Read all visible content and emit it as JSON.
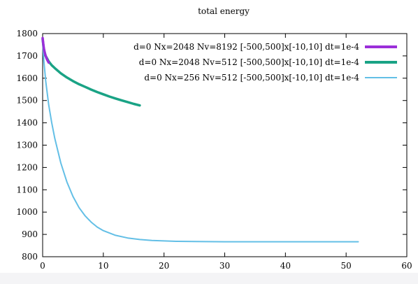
{
  "chart_data": {
    "type": "line",
    "title": "total energy",
    "xlabel": "",
    "ylabel": "",
    "xlim": [
      0,
      60
    ],
    "ylim": [
      800,
      1800
    ],
    "x_ticks": [
      0,
      10,
      20,
      30,
      40,
      50,
      60
    ],
    "y_ticks": [
      800,
      900,
      1000,
      1100,
      1200,
      1300,
      1400,
      1500,
      1600,
      1700,
      1800
    ],
    "grid": false,
    "legend_position": "top-right",
    "series": [
      {
        "name": "d=0 Nx=2048 Nv=8192 [-500,500]x[-10,10] dt=1e-4",
        "color": "#9b2fd9",
        "x": [
          0,
          0.1,
          0.2,
          0.3,
          0.4,
          0.6,
          0.8,
          1.0
        ],
        "y": [
          1780,
          1755,
          1735,
          1720,
          1708,
          1692,
          1680,
          1670
        ]
      },
      {
        "name": "d=0 Nx=2048 Nv=512 [-500,500]x[-10,10] dt=1e-4",
        "color": "#1aa385",
        "x": [
          0,
          0.2,
          0.5,
          1,
          1.5,
          2,
          3,
          4,
          5,
          6,
          7,
          8,
          9,
          10,
          11,
          12,
          13,
          14,
          15,
          16
        ],
        "y": [
          1775,
          1730,
          1700,
          1675,
          1658,
          1645,
          1622,
          1603,
          1587,
          1573,
          1561,
          1549,
          1538,
          1528,
          1518,
          1509,
          1501,
          1493,
          1485,
          1478
        ]
      },
      {
        "name": "d=0 Nx=256 Nv=512 [-500,500]x[-10,10] dt=1e-4",
        "color": "#63bfe6",
        "x": [
          0,
          0.2,
          0.5,
          1,
          1.5,
          2,
          3,
          4,
          5,
          6,
          7,
          8,
          9,
          10,
          12,
          14,
          16,
          18,
          20,
          22,
          25,
          30,
          35,
          40,
          45,
          52
        ],
        "y": [
          1760,
          1680,
          1590,
          1480,
          1400,
          1330,
          1220,
          1135,
          1070,
          1020,
          983,
          955,
          933,
          917,
          896,
          884,
          877,
          873,
          871,
          869,
          868,
          867,
          867,
          867,
          867,
          867
        ]
      }
    ]
  }
}
